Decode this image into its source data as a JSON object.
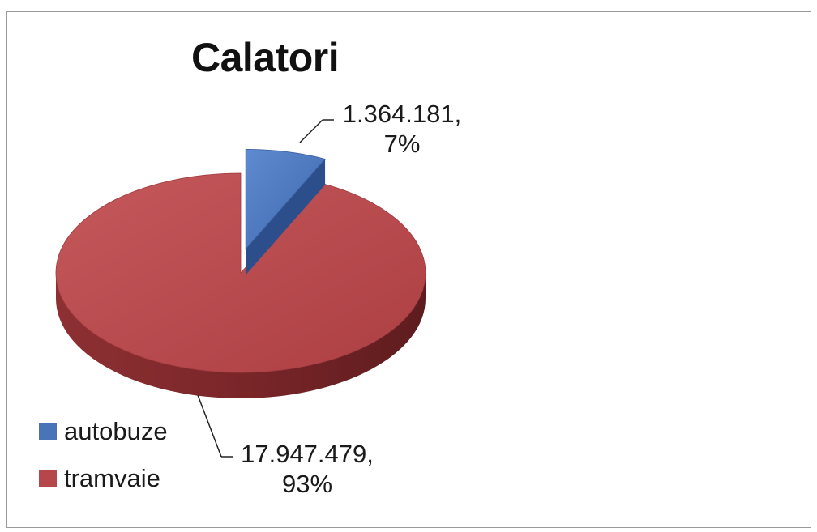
{
  "chart_data": {
    "type": "pie",
    "title": "Calatori",
    "categories": [
      "autobuze",
      "tramvaie"
    ],
    "values": [
      1364181,
      17947479
    ],
    "data_labels": [
      {
        "value": "1.364.181,",
        "percent": "7%"
      },
      {
        "value": "17.947.479,",
        "percent": "93%"
      }
    ],
    "percentages": [
      7,
      93
    ],
    "colors": [
      "#4a74b8",
      "#b5474b"
    ],
    "exploded": "autobuze",
    "style": "3d",
    "legend_position": "left-bottom"
  }
}
